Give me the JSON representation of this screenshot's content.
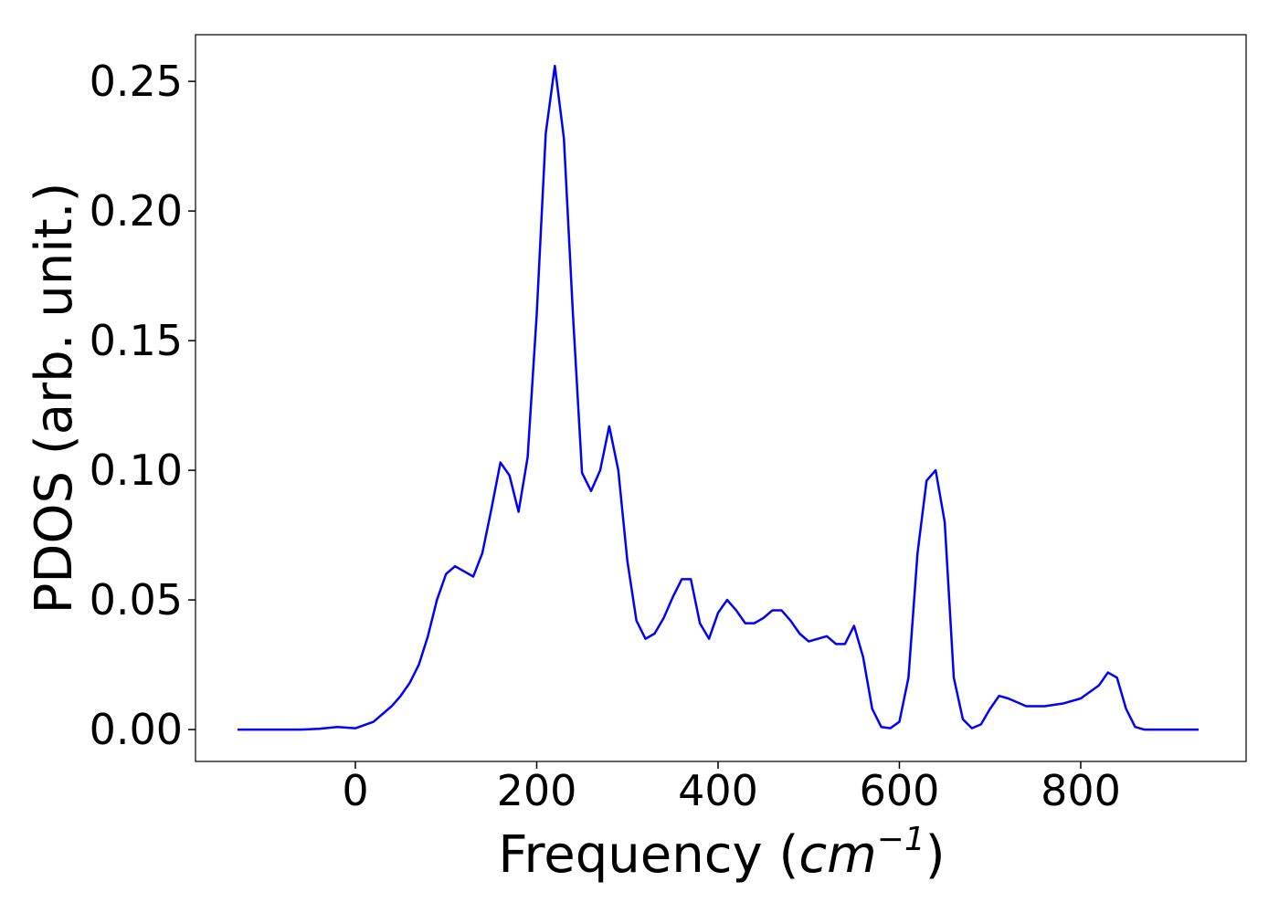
{
  "chart_data": {
    "type": "line",
    "x_label": [
      "Frequency (",
      "cm",
      "−1",
      ")"
    ],
    "y_label": "PDOS (arb. unit.)",
    "x": [
      -130,
      -100,
      -80,
      -60,
      -40,
      -20,
      0,
      20,
      40,
      50,
      60,
      70,
      80,
      90,
      100,
      110,
      120,
      130,
      140,
      150,
      160,
      170,
      180,
      190,
      200,
      210,
      220,
      230,
      240,
      250,
      260,
      270,
      280,
      290,
      300,
      310,
      320,
      330,
      340,
      350,
      360,
      370,
      380,
      390,
      400,
      410,
      420,
      430,
      440,
      450,
      460,
      470,
      480,
      490,
      500,
      510,
      520,
      530,
      540,
      550,
      560,
      570,
      580,
      590,
      600,
      610,
      620,
      630,
      640,
      650,
      660,
      670,
      680,
      690,
      700,
      710,
      720,
      740,
      760,
      780,
      800,
      820,
      830,
      840,
      850,
      860,
      870,
      900,
      930
    ],
    "series": [
      {
        "color": "#0000ff",
        "values": [
          0,
          0,
          0,
          0,
          0.0003,
          0.001,
          0.0005,
          0.003,
          0.009,
          0.013,
          0.018,
          0.025,
          0.036,
          0.05,
          0.06,
          0.063,
          0.061,
          0.059,
          0.068,
          0.085,
          0.103,
          0.098,
          0.084,
          0.105,
          0.16,
          0.23,
          0.256,
          0.228,
          0.16,
          0.099,
          0.092,
          0.1,
          0.117,
          0.1,
          0.065,
          0.042,
          0.035,
          0.037,
          0.043,
          0.051,
          0.058,
          0.058,
          0.041,
          0.035,
          0.045,
          0.05,
          0.046,
          0.041,
          0.041,
          0.043,
          0.046,
          0.046,
          0.042,
          0.037,
          0.034,
          0.035,
          0.036,
          0.033,
          0.033,
          0.04,
          0.028,
          0.008,
          0.001,
          0.0005,
          0.003,
          0.02,
          0.068,
          0.096,
          0.1,
          0.08,
          0.02,
          0.004,
          0.0005,
          0.002,
          0.008,
          0.013,
          0.012,
          0.009,
          0.009,
          0.01,
          0.012,
          0.017,
          0.022,
          0.02,
          0.008,
          0.001,
          0,
          0,
          0
        ]
      }
    ],
    "xlim": [
      -176.3,
      982.4
    ],
    "ylim": [
      -0.0123,
      0.268
    ],
    "xticks": [
      0,
      200,
      400,
      600,
      800
    ],
    "yticks": [
      {
        "value": 0,
        "label": "0.00"
      },
      {
        "value": 0.05,
        "label": "0.05"
      },
      {
        "value": 0.1,
        "label": "0.10"
      },
      {
        "value": 0.15,
        "label": "0.15"
      },
      {
        "value": 0.2,
        "label": "0.20"
      },
      {
        "value": 0.25,
        "label": "0.25"
      }
    ],
    "grid": false
  }
}
